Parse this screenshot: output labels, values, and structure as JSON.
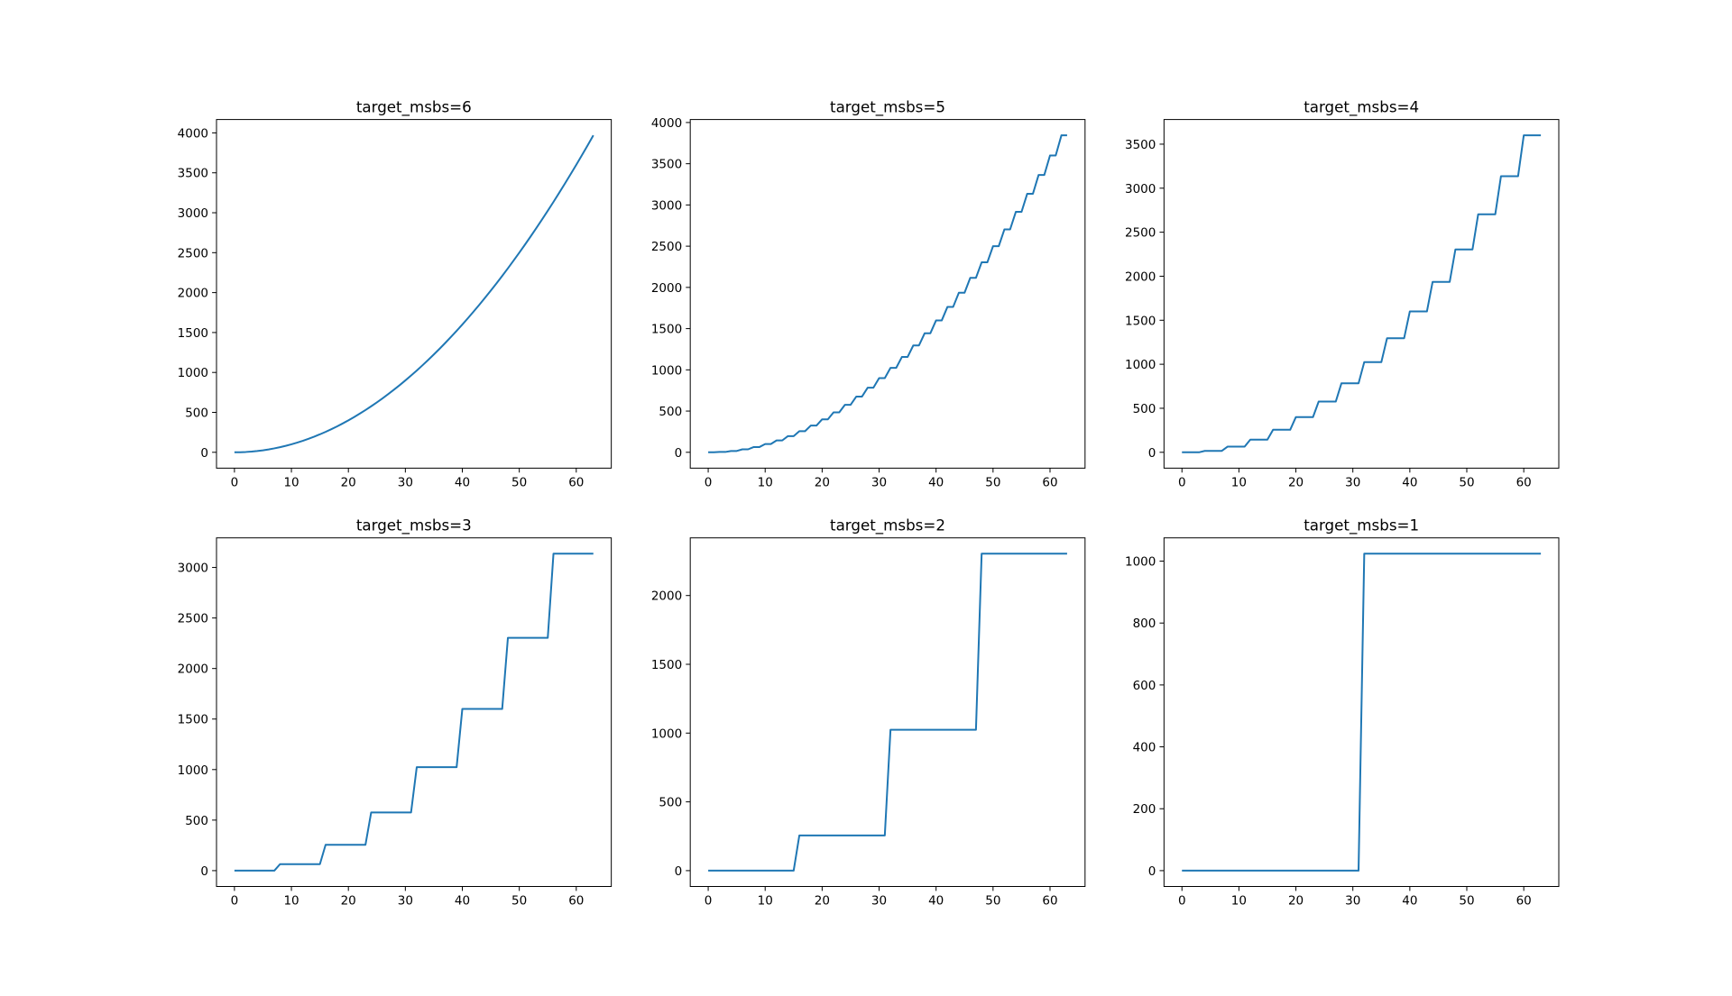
{
  "chart_data": [
    {
      "type": "line",
      "title": "target_msbs=6",
      "xlabel": "",
      "ylabel": "",
      "xlim": [
        -3.15,
        66.15
      ],
      "ylim": [
        -198.45,
        4167.45
      ],
      "xticks": [
        0,
        10,
        20,
        30,
        40,
        50,
        60
      ],
      "yticks": [
        0,
        500,
        1000,
        1500,
        2000,
        2500,
        3000,
        3500,
        4000
      ],
      "color": "#1f77b4",
      "grid": false,
      "x_range": [
        0,
        63
      ],
      "values": [
        0,
        1,
        4,
        9,
        16,
        25,
        36,
        49,
        64,
        81,
        100,
        121,
        144,
        169,
        196,
        225,
        256,
        289,
        324,
        361,
        400,
        441,
        484,
        529,
        576,
        625,
        676,
        729,
        784,
        841,
        900,
        961,
        1024,
        1089,
        1156,
        1225,
        1296,
        1369,
        1444,
        1521,
        1600,
        1681,
        1764,
        1849,
        1936,
        2025,
        2116,
        2209,
        2304,
        2401,
        2500,
        2601,
        2704,
        2809,
        2916,
        3025,
        3136,
        3249,
        3364,
        3481,
        3600,
        3721,
        3844,
        3969
      ]
    },
    {
      "type": "line",
      "title": "target_msbs=5",
      "xlabel": "",
      "ylabel": "",
      "xlim": [
        -3.15,
        66.15
      ],
      "ylim": [
        -192.2,
        4036.2
      ],
      "xticks": [
        0,
        10,
        20,
        30,
        40,
        50,
        60
      ],
      "yticks": [
        0,
        500,
        1000,
        1500,
        2000,
        2500,
        3000,
        3500,
        4000
      ],
      "color": "#1f77b4",
      "grid": false,
      "x_range": [
        0,
        63
      ],
      "values": [
        0,
        0,
        4,
        4,
        16,
        16,
        36,
        36,
        64,
        64,
        100,
        100,
        144,
        144,
        196,
        196,
        256,
        256,
        324,
        324,
        400,
        400,
        484,
        484,
        576,
        576,
        676,
        676,
        784,
        784,
        900,
        900,
        1024,
        1024,
        1156,
        1156,
        1296,
        1296,
        1444,
        1444,
        1600,
        1600,
        1764,
        1764,
        1936,
        1936,
        2116,
        2116,
        2304,
        2304,
        2500,
        2500,
        2704,
        2704,
        2916,
        2916,
        3136,
        3136,
        3364,
        3364,
        3600,
        3600,
        3844,
        3844
      ]
    },
    {
      "type": "line",
      "title": "target_msbs=4",
      "xlabel": "",
      "ylabel": "",
      "xlim": [
        -3.15,
        66.15
      ],
      "ylim": [
        -180,
        3780
      ],
      "xticks": [
        0,
        10,
        20,
        30,
        40,
        50,
        60
      ],
      "yticks": [
        0,
        500,
        1000,
        1500,
        2000,
        2500,
        3000,
        3500
      ],
      "color": "#1f77b4",
      "grid": false,
      "x_range": [
        0,
        63
      ],
      "values": [
        0,
        0,
        0,
        0,
        16,
        16,
        16,
        16,
        64,
        64,
        64,
        64,
        144,
        144,
        144,
        144,
        256,
        256,
        256,
        256,
        400,
        400,
        400,
        400,
        576,
        576,
        576,
        576,
        784,
        784,
        784,
        784,
        1024,
        1024,
        1024,
        1024,
        1296,
        1296,
        1296,
        1296,
        1600,
        1600,
        1600,
        1600,
        1936,
        1936,
        1936,
        1936,
        2304,
        2304,
        2304,
        2304,
        2704,
        2704,
        2704,
        2704,
        3136,
        3136,
        3136,
        3136,
        3600,
        3600,
        3600,
        3600
      ]
    },
    {
      "type": "line",
      "title": "target_msbs=3",
      "xlabel": "",
      "ylabel": "",
      "xlim": [
        -3.15,
        66.15
      ],
      "ylim": [
        -156.8,
        3292.8
      ],
      "xticks": [
        0,
        10,
        20,
        30,
        40,
        50,
        60
      ],
      "yticks": [
        0,
        500,
        1000,
        1500,
        2000,
        2500,
        3000
      ],
      "color": "#1f77b4",
      "grid": false,
      "x_range": [
        0,
        63
      ],
      "values": [
        0,
        0,
        0,
        0,
        0,
        0,
        0,
        0,
        64,
        64,
        64,
        64,
        64,
        64,
        64,
        64,
        256,
        256,
        256,
        256,
        256,
        256,
        256,
        256,
        576,
        576,
        576,
        576,
        576,
        576,
        576,
        576,
        1024,
        1024,
        1024,
        1024,
        1024,
        1024,
        1024,
        1024,
        1600,
        1600,
        1600,
        1600,
        1600,
        1600,
        1600,
        1600,
        2304,
        2304,
        2304,
        2304,
        2304,
        2304,
        2304,
        2304,
        3136,
        3136,
        3136,
        3136,
        3136,
        3136,
        3136,
        3136
      ]
    },
    {
      "type": "line",
      "title": "target_msbs=2",
      "xlabel": "",
      "ylabel": "",
      "xlim": [
        -3.15,
        66.15
      ],
      "ylim": [
        -115.2,
        2419.2
      ],
      "xticks": [
        0,
        10,
        20,
        30,
        40,
        50,
        60
      ],
      "yticks": [
        0,
        500,
        1000,
        1500,
        2000
      ],
      "color": "#1f77b4",
      "grid": false,
      "x_range": [
        0,
        63
      ],
      "values": [
        0,
        0,
        0,
        0,
        0,
        0,
        0,
        0,
        0,
        0,
        0,
        0,
        0,
        0,
        0,
        0,
        256,
        256,
        256,
        256,
        256,
        256,
        256,
        256,
        256,
        256,
        256,
        256,
        256,
        256,
        256,
        256,
        1024,
        1024,
        1024,
        1024,
        1024,
        1024,
        1024,
        1024,
        1024,
        1024,
        1024,
        1024,
        1024,
        1024,
        1024,
        1024,
        2304,
        2304,
        2304,
        2304,
        2304,
        2304,
        2304,
        2304,
        2304,
        2304,
        2304,
        2304,
        2304,
        2304,
        2304,
        2304
      ]
    },
    {
      "type": "line",
      "title": "target_msbs=1",
      "xlabel": "",
      "ylabel": "",
      "xlim": [
        -3.15,
        66.15
      ],
      "ylim": [
        -51.2,
        1075.2
      ],
      "xticks": [
        0,
        10,
        20,
        30,
        40,
        50,
        60
      ],
      "yticks": [
        0,
        200,
        400,
        600,
        800,
        1000
      ],
      "color": "#1f77b4",
      "grid": false,
      "x_range": [
        0,
        63
      ],
      "values": [
        0,
        0,
        0,
        0,
        0,
        0,
        0,
        0,
        0,
        0,
        0,
        0,
        0,
        0,
        0,
        0,
        0,
        0,
        0,
        0,
        0,
        0,
        0,
        0,
        0,
        0,
        0,
        0,
        0,
        0,
        0,
        0,
        1024,
        1024,
        1024,
        1024,
        1024,
        1024,
        1024,
        1024,
        1024,
        1024,
        1024,
        1024,
        1024,
        1024,
        1024,
        1024,
        1024,
        1024,
        1024,
        1024,
        1024,
        1024,
        1024,
        1024,
        1024,
        1024,
        1024,
        1024,
        1024,
        1024,
        1024,
        1024
      ]
    }
  ]
}
